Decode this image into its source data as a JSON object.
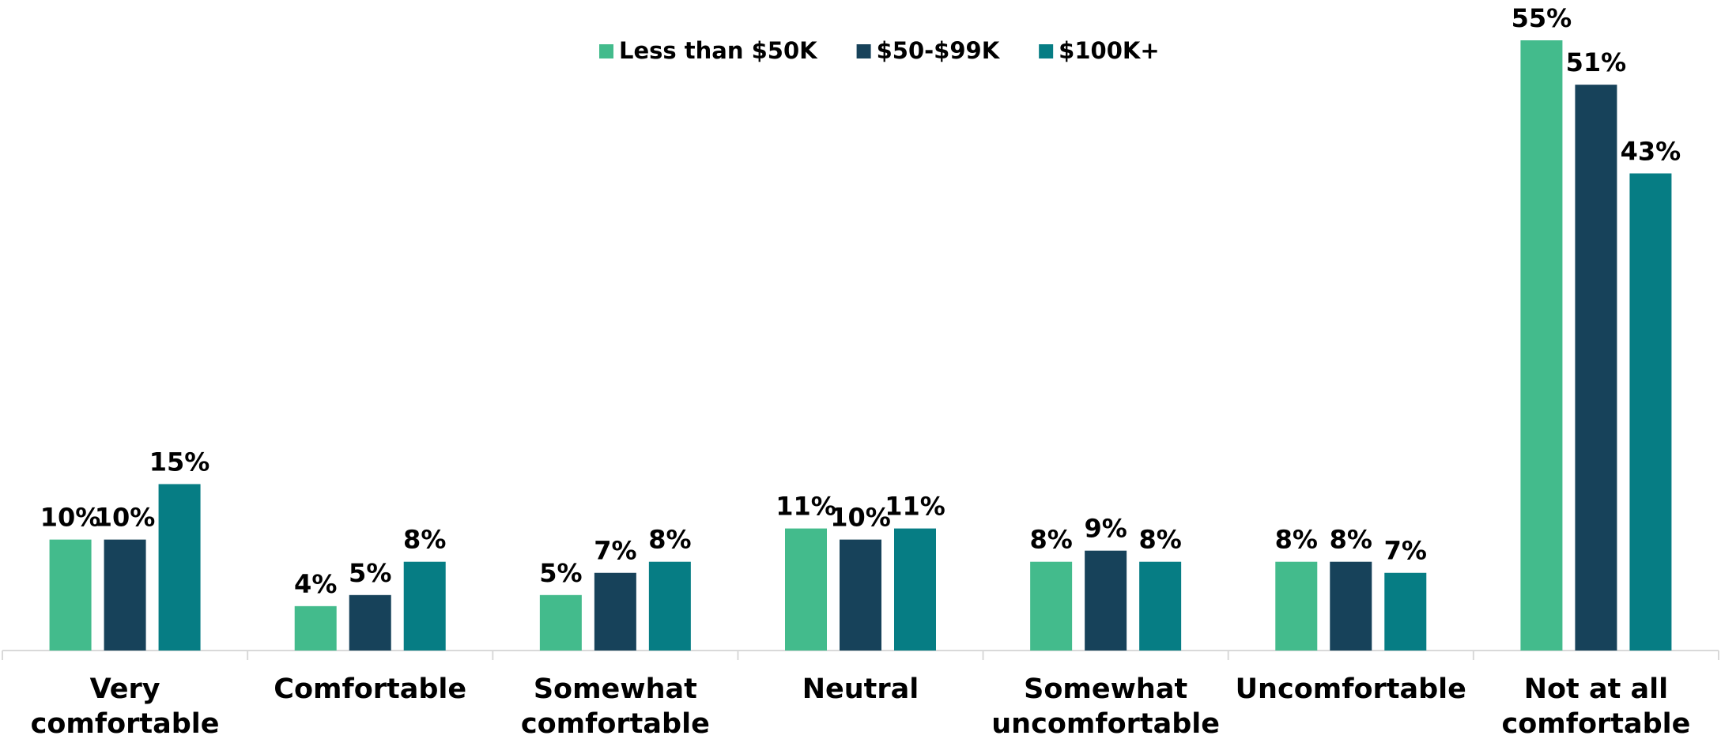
{
  "chart_data": {
    "type": "bar",
    "categories": [
      [
        "Very",
        "comfortable"
      ],
      [
        "Comfortable"
      ],
      [
        "Somewhat",
        "comfortable"
      ],
      [
        "Neutral"
      ],
      [
        "Somewhat",
        "uncomfortable"
      ],
      [
        "Uncomfortable"
      ],
      [
        "Not at all",
        "comfortable"
      ]
    ],
    "series": [
      {
        "name": "Less than $50K",
        "color": "#43bb8c",
        "values": [
          10,
          4,
          5,
          11,
          8,
          8,
          55
        ],
        "value_labels": [
          "10%",
          "4%",
          "5%",
          "11%",
          "8%",
          "8%",
          "55%"
        ]
      },
      {
        "name": "$50-$99K",
        "color": "#17425a",
        "values": [
          10,
          5,
          7,
          10,
          9,
          8,
          51
        ],
        "value_labels": [
          "10%",
          "5%",
          "7%",
          "10%",
          "9%",
          "8%",
          "51%"
        ]
      },
      {
        "name": "$100K+",
        "color": "#067d84",
        "values": [
          15,
          8,
          8,
          11,
          8,
          7,
          43
        ],
        "value_labels": [
          "15%",
          "8%",
          "8%",
          "11%",
          "8%",
          "7%",
          "43%"
        ]
      }
    ],
    "legend": "top"
  }
}
